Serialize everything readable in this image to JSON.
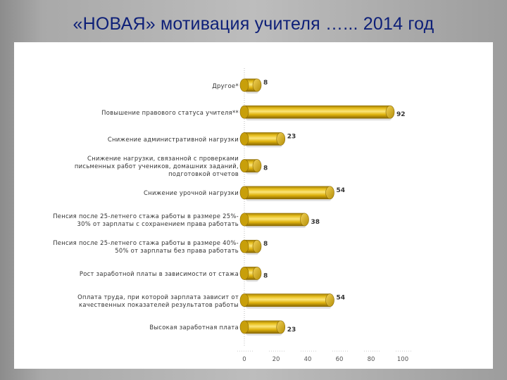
{
  "slide": {
    "title": "«НОВАЯ» мотивация учителя …... 2014 год"
  },
  "chart_data": {
    "type": "bar",
    "orientation": "horizontal",
    "style": "3d-cylinder",
    "bar_color": "#e3b60f",
    "categories": [
      "Другое*",
      "Повышение правового статуса учителя**",
      "Снижение административной нагрузки",
      "Снижение нагрузки, связанной с проверками\nписьменных работ учеников, домашних заданий,\nподготовкой отчетов",
      "Снижение урочной нагрузки",
      "Пенсия после 25-летнего стажа работы в размере 25%-\n30% от зарплаты с сохранением права работать",
      "Пенсия после 25-летнего стажа работы в размере 40%-\n50% от зарплаты без права работать",
      "Рост заработной платы в зависимости от стажа",
      "Оплата труда, при которой зарплата зависит от\nкачественных показателей результатов работы",
      "Высокая заработная плата"
    ],
    "values": [
      8,
      92,
      23,
      8,
      54,
      38,
      8,
      8,
      54,
      23
    ],
    "xlim": [
      0,
      100
    ],
    "xticks": [
      "0",
      "20",
      "40",
      "60",
      "80",
      "100"
    ],
    "grid": false,
    "legend": "none"
  }
}
